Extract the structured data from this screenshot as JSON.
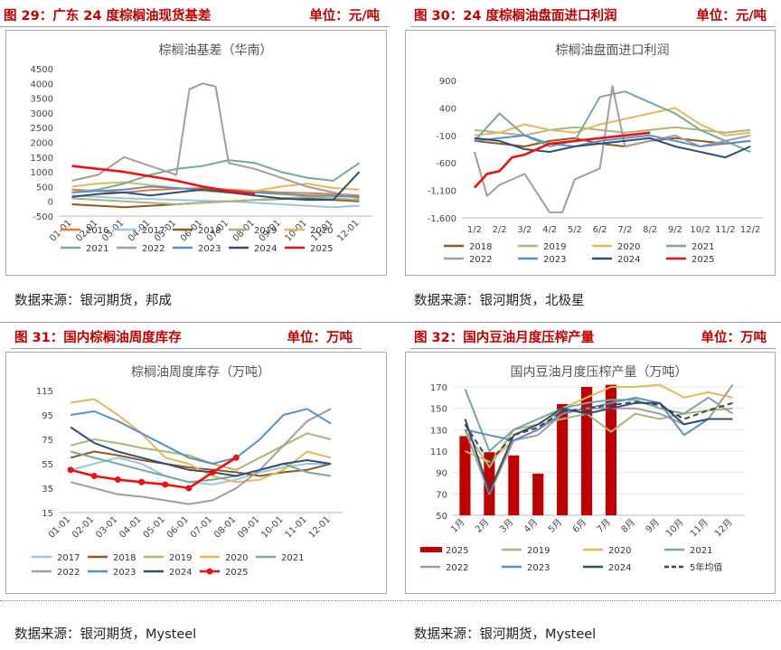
{
  "panels": {
    "p29": {
      "title": "图 29：广东 24 度棕榈油现货基差",
      "unit": "单位：元/吨",
      "source": "数据来源：银河期货，邦成"
    },
    "p30": {
      "title": "图 30：24 度棕榈油盘面进口利润",
      "unit": "单位：元/吨",
      "source": "数据来源：银河期货，北极星"
    },
    "p31": {
      "title": "图 31：国内棕榈油周度库存",
      "unit": "单位：万吨",
      "source": "数据来源：银河期货，Mysteel"
    },
    "p32": {
      "title": "图 32：国内豆油月度压榨产量",
      "unit": "单位：万吨",
      "source": "数据来源：银河期货，Mysteel"
    }
  },
  "colors": {
    "2016": "#e07b39",
    "2017": "#9dc3e6",
    "2018": "#8c5a1e",
    "2019": "#a9b57a",
    "2020": "#e2b85a",
    "2021": "#76a99a",
    "2022": "#a89a9a",
    "2023": "#5b8fc7",
    "2024": "#2f4f6f",
    "2025": "#ee1111"
  },
  "chart_data": [
    {
      "type": "line",
      "title": "棕榈油基差（华南）",
      "x_ticks": [
        "01-01",
        "02-01",
        "03-01",
        "04-01",
        "05-01",
        "06-01",
        "07-01",
        "08-01",
        "09-01",
        "10-01",
        "11-01",
        "12-01"
      ],
      "y_ticks": [
        "-500",
        "0",
        "500",
        "1000",
        "1500",
        "2000",
        "2500",
        "3000",
        "3500",
        "4000",
        "4500"
      ],
      "ylim": [
        -500,
        4500
      ],
      "legend": [
        "2016",
        "2017",
        "2018",
        "2019",
        "2020",
        "2021",
        "2022",
        "2023",
        "2024",
        "2025"
      ],
      "series": [
        {
          "name": "2016",
          "x": [
            0,
            1,
            2,
            3,
            4,
            5,
            6,
            7,
            8,
            9,
            10,
            11
          ],
          "y": [
            400,
            350,
            300,
            380,
            420,
            450,
            400,
            350,
            300,
            280,
            250,
            200
          ]
        },
        {
          "name": "2017",
          "x": [
            0,
            1,
            2,
            3,
            4,
            5,
            6,
            7,
            8,
            9,
            10,
            11
          ],
          "y": [
            200,
            150,
            100,
            80,
            50,
            20,
            0,
            -50,
            -100,
            -150,
            -200,
            -150
          ]
        },
        {
          "name": "2018",
          "x": [
            0,
            1,
            2,
            3,
            4,
            5,
            6,
            7,
            8,
            9,
            10,
            11
          ],
          "y": [
            -100,
            -150,
            -200,
            -150,
            -100,
            -50,
            0,
            50,
            80,
            100,
            50,
            0
          ]
        },
        {
          "name": "2019",
          "x": [
            0,
            1,
            2,
            3,
            4,
            5,
            6,
            7,
            8,
            9,
            10,
            11
          ],
          "y": [
            100,
            50,
            0,
            -50,
            -100,
            -50,
            0,
            50,
            100,
            150,
            100,
            50
          ]
        },
        {
          "name": "2020",
          "x": [
            0,
            1,
            2,
            3,
            4,
            5,
            6,
            7,
            8,
            9,
            10,
            11
          ],
          "y": [
            500,
            600,
            650,
            550,
            450,
            350,
            300,
            350,
            500,
            600,
            450,
            400
          ]
        },
        {
          "name": "2021",
          "x": [
            0,
            1,
            2,
            3,
            4,
            5,
            6,
            7,
            8,
            9,
            10,
            11
          ],
          "y": [
            300,
            400,
            600,
            900,
            1100,
            1200,
            1400,
            1300,
            1000,
            800,
            700,
            1300
          ]
        },
        {
          "name": "2022",
          "x": [
            0,
            1,
            2,
            3,
            4,
            4.5,
            5,
            5.5,
            6,
            7,
            8,
            9,
            10,
            11
          ],
          "y": [
            700,
            900,
            1500,
            1200,
            900,
            3800,
            4000,
            3900,
            1300,
            1100,
            800,
            500,
            300,
            100
          ]
        },
        {
          "name": "2023",
          "x": [
            0,
            1,
            2,
            3,
            4,
            5,
            6,
            7,
            8,
            9,
            10,
            11
          ],
          "y": [
            300,
            350,
            400,
            500,
            450,
            400,
            350,
            300,
            250,
            200,
            180,
            150
          ]
        },
        {
          "name": "2024",
          "x": [
            0,
            1,
            2,
            3,
            4,
            5,
            6,
            7,
            8,
            9,
            10,
            11
          ],
          "y": [
            150,
            250,
            300,
            200,
            300,
            400,
            300,
            200,
            100,
            50,
            50,
            1000
          ]
        },
        {
          "name": "2025",
          "x": [
            0,
            1,
            2,
            3,
            4,
            5,
            6,
            7
          ],
          "y": [
            1200,
            1100,
            1000,
            850,
            700,
            500,
            350,
            250
          ]
        }
      ]
    },
    {
      "type": "line",
      "title": "棕榈油盘面进口利润",
      "x_ticks": [
        "1/2",
        "2/2",
        "3/2",
        "4/2",
        "5/2",
        "6/2",
        "7/2",
        "8/2",
        "9/2",
        "10/2",
        "11/2",
        "12/2"
      ],
      "y_ticks": [
        "900",
        "400",
        "-100",
        "-600",
        "-1,100",
        "-1,600"
      ],
      "ylim": [
        -1600,
        900
      ],
      "legend": [
        "2018",
        "2019",
        "2020",
        "2021",
        "2022",
        "2023",
        "2024",
        "2025"
      ],
      "series": [
        {
          "name": "2018",
          "x": [
            0,
            1,
            2,
            3,
            4,
            5,
            6,
            7,
            8,
            9,
            10,
            11
          ],
          "y": [
            -200,
            -250,
            -300,
            -200,
            -150,
            -250,
            -300,
            -200,
            -150,
            -200,
            -250,
            -200
          ]
        },
        {
          "name": "2019",
          "x": [
            0,
            1,
            2,
            3,
            4,
            5,
            6,
            7,
            8,
            9,
            10,
            11
          ],
          "y": [
            0,
            -50,
            -100,
            0,
            50,
            0,
            -50,
            0,
            50,
            0,
            -50,
            0
          ]
        },
        {
          "name": "2020",
          "x": [
            0,
            1,
            2,
            3,
            4,
            5,
            6,
            7,
            8,
            9,
            10,
            11
          ],
          "y": [
            -100,
            -50,
            100,
            0,
            -50,
            100,
            200,
            300,
            400,
            100,
            -100,
            -50
          ]
        },
        {
          "name": "2021",
          "x": [
            0,
            1,
            2,
            3,
            4,
            5,
            6,
            7,
            8,
            9,
            10,
            11
          ],
          "y": [
            -200,
            300,
            -100,
            -300,
            -200,
            600,
            700,
            500,
            300,
            0,
            -200,
            -400
          ]
        },
        {
          "name": "2022",
          "x": [
            0,
            0.5,
            1,
            2,
            3,
            3.5,
            4,
            5,
            5.5,
            6,
            7,
            8,
            9,
            10,
            11
          ],
          "y": [
            -400,
            -1200,
            -1000,
            -800,
            -1500,
            -1500,
            -900,
            -700,
            800,
            -300,
            -200,
            -100,
            -300,
            -200,
            -100
          ]
        },
        {
          "name": "2023",
          "x": [
            0,
            1,
            2,
            3,
            4,
            5,
            6,
            7,
            8,
            9,
            10,
            11
          ],
          "y": [
            -200,
            -150,
            -100,
            -250,
            -300,
            -200,
            -150,
            -100,
            -200,
            -300,
            -250,
            -200
          ]
        },
        {
          "name": "2024",
          "x": [
            0,
            1,
            2,
            3,
            4,
            5,
            6,
            7,
            8,
            9,
            10,
            11
          ],
          "y": [
            -150,
            -200,
            -350,
            -400,
            -300,
            -250,
            -200,
            -150,
            -300,
            -400,
            -500,
            -300
          ]
        },
        {
          "name": "2025",
          "x": [
            0,
            0.5,
            1,
            1.5,
            2,
            3,
            4,
            5,
            6,
            7
          ],
          "y": [
            -1050,
            -800,
            -750,
            -500,
            -450,
            -250,
            -200,
            -150,
            -100,
            -50
          ]
        }
      ]
    },
    {
      "type": "line",
      "title": "棕榈油周度库存（万吨）",
      "x_ticks": [
        "01-01",
        "02-01",
        "03-01",
        "04-01",
        "05-01",
        "06-01",
        "07-01",
        "08-01",
        "09-01",
        "10-01",
        "11-01",
        "12-01"
      ],
      "y_ticks": [
        "115",
        "95",
        "75",
        "55",
        "35",
        "15"
      ],
      "ylim": [
        15,
        115
      ],
      "legend": [
        "2017",
        "2018",
        "2019",
        "2020",
        "2021",
        "2022",
        "2023",
        "2024",
        "2025"
      ],
      "series": [
        {
          "name": "2017",
          "x": [
            0,
            1,
            2,
            3,
            4,
            5,
            6,
            7,
            8,
            9,
            10,
            11
          ],
          "y": [
            50,
            55,
            60,
            55,
            45,
            40,
            38,
            42,
            48,
            52,
            55,
            55
          ]
        },
        {
          "name": "2018",
          "x": [
            0,
            1,
            2,
            3,
            4,
            5,
            6,
            7,
            8,
            9,
            10,
            11
          ],
          "y": [
            60,
            65,
            62,
            58,
            55,
            52,
            50,
            48,
            45,
            48,
            50,
            55
          ]
        },
        {
          "name": "2019",
          "x": [
            0,
            1,
            2,
            3,
            4,
            5,
            6,
            7,
            8,
            9,
            10,
            11
          ],
          "y": [
            70,
            75,
            72,
            68,
            65,
            62,
            55,
            50,
            60,
            70,
            80,
            75
          ]
        },
        {
          "name": "2020",
          "x": [
            0,
            1,
            2,
            3,
            4,
            5,
            6,
            7,
            8,
            9,
            10,
            11
          ],
          "y": [
            105,
            108,
            95,
            80,
            60,
            55,
            45,
            40,
            42,
            50,
            65,
            60
          ]
        },
        {
          "name": "2021",
          "x": [
            0,
            1,
            2,
            3,
            4,
            5,
            6,
            7,
            8,
            9,
            10,
            11
          ],
          "y": [
            65,
            60,
            55,
            50,
            45,
            40,
            42,
            45,
            50,
            55,
            48,
            45
          ]
        },
        {
          "name": "2022",
          "x": [
            0,
            1,
            2,
            3,
            4,
            5,
            6,
            7,
            8,
            9,
            10,
            11
          ],
          "y": [
            40,
            35,
            30,
            28,
            25,
            22,
            25,
            35,
            50,
            70,
            90,
            100
          ]
        },
        {
          "name": "2023",
          "x": [
            0,
            1,
            2,
            3,
            4,
            5,
            6,
            7,
            8,
            9,
            10,
            11
          ],
          "y": [
            95,
            98,
            90,
            80,
            70,
            60,
            55,
            60,
            75,
            95,
            100,
            88
          ]
        },
        {
          "name": "2024",
          "x": [
            0,
            1,
            2,
            3,
            4,
            5,
            6,
            7,
            8,
            9,
            10,
            11
          ],
          "y": [
            85,
            72,
            65,
            60,
            55,
            50,
            48,
            45,
            50,
            55,
            58,
            55
          ]
        },
        {
          "name": "2025",
          "x": [
            0,
            1,
            2,
            3,
            4,
            5,
            6,
            7
          ],
          "y": [
            50,
            45,
            42,
            40,
            38,
            35,
            48,
            60
          ]
        }
      ]
    },
    {
      "type": "bar+line",
      "title": "国内豆油月度压榨产量（万吨）",
      "categories": [
        "1月",
        "2月",
        "3月",
        "4月",
        "5月",
        "6月",
        "7月",
        "8月",
        "9月",
        "10月",
        "11月",
        "12月"
      ],
      "y_ticks": [
        "170",
        "150",
        "130",
        "110",
        "90",
        "70",
        "50"
      ],
      "ylim": [
        50,
        170
      ],
      "legend": [
        "2025",
        "2019",
        "2020",
        "2021",
        "2022",
        "2023",
        "2024",
        "5年均值"
      ],
      "bars": {
        "name": "2025",
        "values": [
          124,
          109,
          106,
          89,
          154,
          170,
          172
        ]
      },
      "series": [
        {
          "name": "2019",
          "values": [
            130,
            95,
            130,
            135,
            140,
            145,
            128,
            145,
            140,
            145,
            148,
            150
          ]
        },
        {
          "name": "2020",
          "values": [
            110,
            100,
            120,
            130,
            150,
            160,
            170,
            170,
            172,
            160,
            165,
            160
          ]
        },
        {
          "name": "2021",
          "values": [
            168,
            110,
            130,
            140,
            150,
            155,
            158,
            158,
            150,
            145,
            160,
            145
          ]
        },
        {
          "name": "2022",
          "values": [
            130,
            70,
            120,
            125,
            145,
            150,
            150,
            150,
            145,
            135,
            140,
            172
          ]
        },
        {
          "name": "2023",
          "values": [
            130,
            125,
            120,
            130,
            145,
            150,
            155,
            160,
            155,
            125,
            140,
            140
          ]
        },
        {
          "name": "2024",
          "values": [
            140,
            72,
            125,
            135,
            150,
            145,
            150,
            155,
            155,
            135,
            140,
            140
          ]
        },
        {
          "name": "5年均值",
          "values": [
            135,
            100,
            125,
            132,
            147,
            150,
            153,
            156,
            153,
            140,
            148,
            155
          ]
        }
      ]
    }
  ]
}
